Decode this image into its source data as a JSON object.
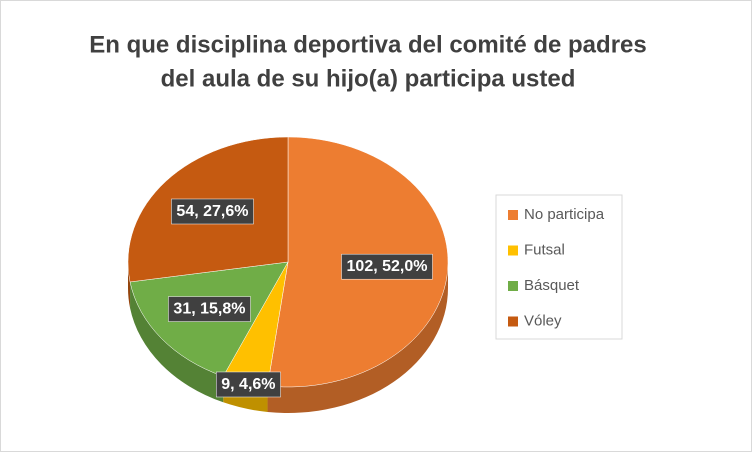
{
  "chart_data": {
    "type": "pie",
    "title": [
      "En que disciplina deportiva del comité de padres",
      "del aula de su hijo(a) participa usted"
    ],
    "categories": [
      "No participa",
      "Futsal",
      "Básquet",
      "Vóley"
    ],
    "values": [
      102,
      9,
      31,
      54
    ],
    "value_labels": [
      "102, 52,0%",
      "9, 4,6%",
      "31, 15,8%",
      "54, 27,6%"
    ],
    "colors": [
      "#ED7D31",
      "#FFC000",
      "#70AD47",
      "#C55A11"
    ],
    "legend": "right"
  }
}
